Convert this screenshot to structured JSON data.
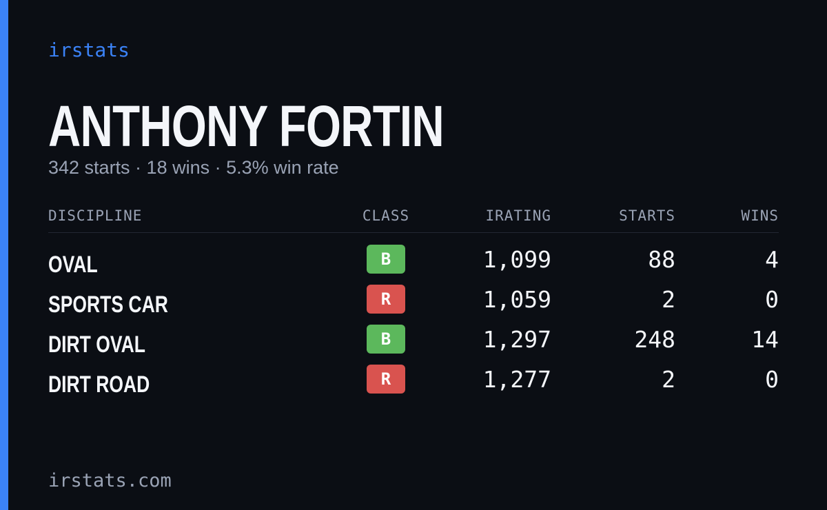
{
  "brand": "irstats",
  "driver": {
    "name": "ANTHONY FORTIN",
    "summary": "342 starts · 18 wins · 5.3% win rate"
  },
  "table": {
    "headers": [
      "DISCIPLINE",
      "CLASS",
      "IRATING",
      "STARTS",
      "WINS"
    ],
    "rows": [
      {
        "discipline": "OVAL",
        "class": "B",
        "class_color": "#5cb85c",
        "irating": "1,099",
        "starts": "88",
        "wins": "4"
      },
      {
        "discipline": "SPORTS CAR",
        "class": "R",
        "class_color": "#d9534f",
        "irating": "1,059",
        "starts": "2",
        "wins": "0"
      },
      {
        "discipline": "DIRT OVAL",
        "class": "B",
        "class_color": "#5cb85c",
        "irating": "1,297",
        "starts": "248",
        "wins": "14"
      },
      {
        "discipline": "DIRT ROAD",
        "class": "R",
        "class_color": "#d9534f",
        "irating": "1,277",
        "starts": "2",
        "wins": "0"
      }
    ]
  },
  "footer": "irstats.com"
}
